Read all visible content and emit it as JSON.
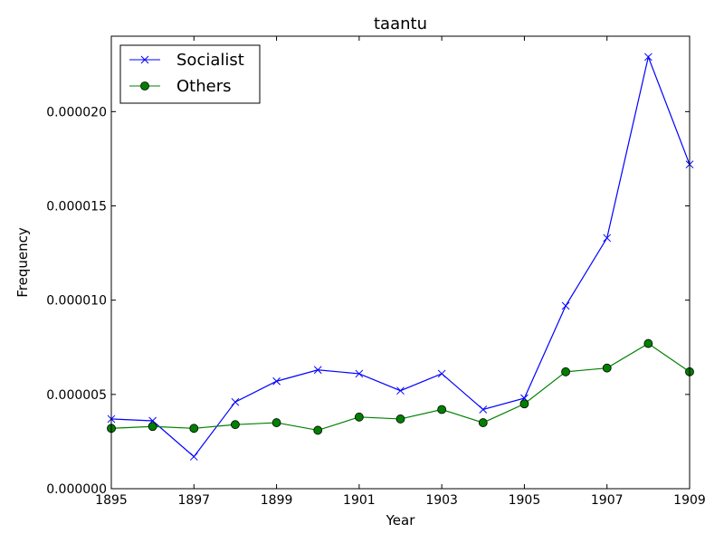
{
  "chart_data": {
    "type": "line",
    "title": "taantu",
    "xlabel": "Year",
    "ylabel": "Frequency",
    "xlim": [
      1895,
      1909
    ],
    "ylim": [
      0,
      2.4e-05
    ],
    "xticks": [
      "1895",
      "1897",
      "1899",
      "1901",
      "1903",
      "1905",
      "1907",
      "1909"
    ],
    "yticks": [
      "0.000000",
      "0.000005",
      "0.000010",
      "0.000015",
      "0.000020"
    ],
    "grid": false,
    "legend_position": "top-left",
    "x": [
      1895,
      1896,
      1897,
      1898,
      1899,
      1900,
      1901,
      1902,
      1903,
      1904,
      1905,
      1906,
      1907,
      1908,
      1909
    ],
    "series": [
      {
        "name": "Socialist",
        "color": "#0000ff",
        "marker": "x",
        "values": [
          3.7e-06,
          3.6e-06,
          1.7e-06,
          4.6e-06,
          5.7e-06,
          6.3e-06,
          6.1e-06,
          5.2e-06,
          6.1e-06,
          4.2e-06,
          4.8e-06,
          9.7e-06,
          1.33e-05,
          2.29e-05,
          1.72e-05
        ]
      },
      {
        "name": "Others",
        "color": "#008000",
        "marker": "o",
        "values": [
          3.2e-06,
          3.3e-06,
          3.2e-06,
          3.4e-06,
          3.5e-06,
          3.1e-06,
          3.8e-06,
          3.7e-06,
          4.2e-06,
          3.5e-06,
          4.5e-06,
          6.2e-06,
          6.4e-06,
          7.7e-06,
          6.2e-06
        ]
      }
    ]
  }
}
